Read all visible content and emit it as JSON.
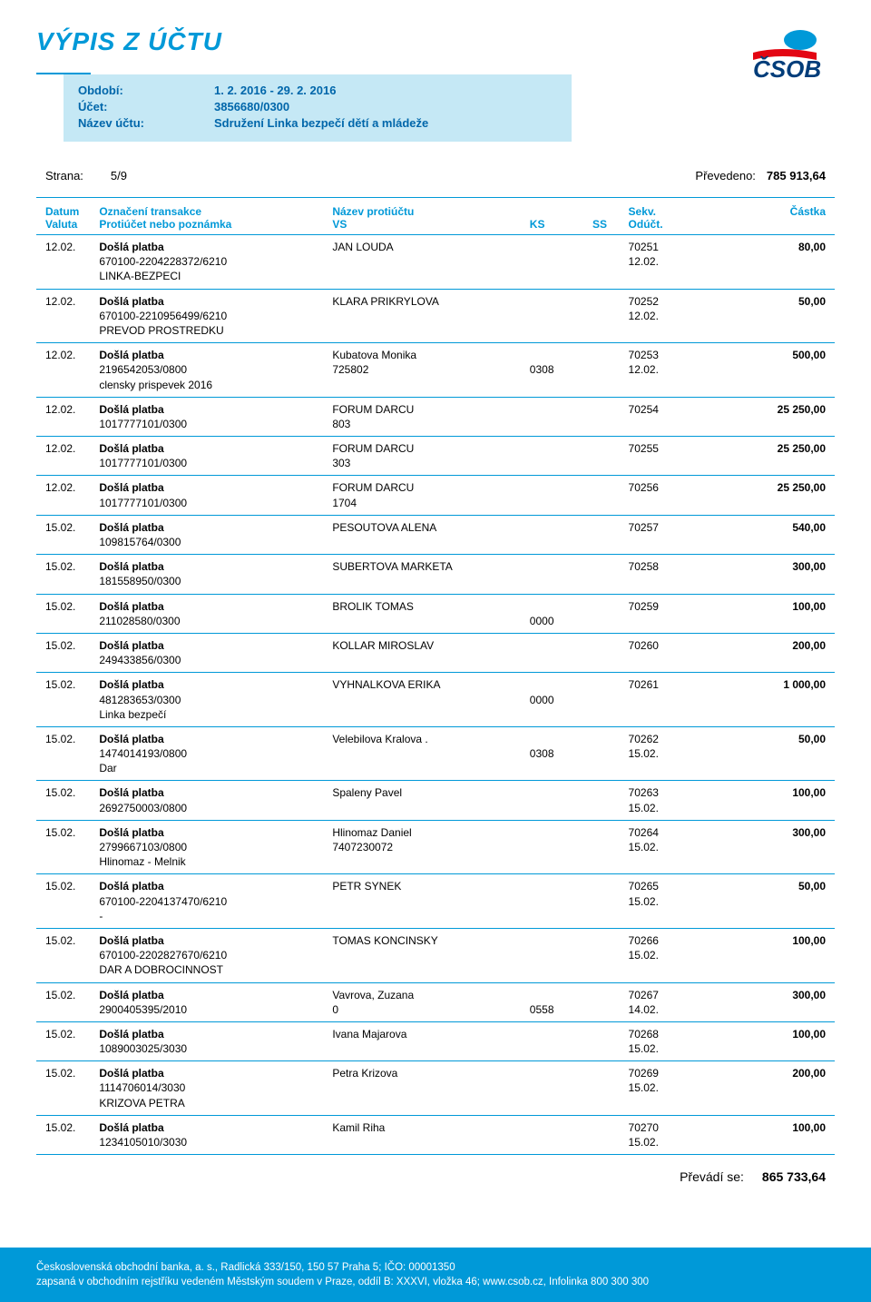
{
  "doc": {
    "title": "VÝPIS Z ÚČTU",
    "period_label": "Období:",
    "period_value": "1. 2. 2016 - 29. 2. 2016",
    "account_label": "Účet:",
    "account_value": "3856680/0300",
    "name_label": "Název účtu:",
    "name_value": "Sdružení Linka bezpečí dětí a mládeže",
    "page_label": "Strana:",
    "page_value": "5/9",
    "carried_label": "Převedeno:",
    "carried_value": "785 913,64",
    "summary_label": "Převádí se:",
    "summary_value": "865 733,64",
    "logo_text": "ČSOB",
    "footer_line1": "Československá obchodní banka, a. s., Radlická 333/150, 150 57 Praha 5; IČO: 00001350",
    "footer_line2": "zapsaná v obchodním rejstříku vedeném Městským soudem v Praze, oddíl B: XXXVI, vložka 46; www.csob.cz, Infolinka 800 300 300"
  },
  "colors": {
    "primary": "#0099d8",
    "info_bg": "#c5e8f5",
    "info_text": "#0066aa",
    "text": "#000000",
    "white": "#ffffff"
  },
  "headers": {
    "date": "Datum",
    "valuta": "Valuta",
    "label": "Označení transakce",
    "note": "Protiúčet nebo poznámka",
    "counter": "Název protiúčtu",
    "vs": "VS",
    "ks": "KS",
    "ss": "SS",
    "sekv": "Sekv.",
    "oduct": "Odúčt.",
    "amount": "Částka"
  },
  "transactions": [
    {
      "date": "12.02.",
      "type": "Došlá platba",
      "acct": "670100-2204228372/6210",
      "note": "LINKA-BEZPECI",
      "name": "JAN LOUDA",
      "vs": "",
      "ks": "",
      "sekv": "70251",
      "oduct": "12.02.",
      "amount": "80,00"
    },
    {
      "date": "12.02.",
      "type": "Došlá platba",
      "acct": "670100-2210956499/6210",
      "note": "PREVOD PROSTREDKU",
      "name": "KLARA PRIKRYLOVA",
      "vs": "",
      "ks": "",
      "sekv": "70252",
      "oduct": "12.02.",
      "amount": "50,00"
    },
    {
      "date": "12.02.",
      "type": "Došlá platba",
      "acct": "2196542053/0800",
      "note": "clensky prispevek 2016",
      "name": "Kubatova Monika",
      "vs": "725802",
      "ks": "0308",
      "sekv": "70253",
      "oduct": "12.02.",
      "amount": "500,00"
    },
    {
      "date": "12.02.",
      "type": "Došlá platba",
      "acct": "1017777101/0300",
      "note": "",
      "name": "FORUM DARCU",
      "vs": "803",
      "ks": "",
      "sekv": "70254",
      "oduct": "",
      "amount": "25 250,00"
    },
    {
      "date": "12.02.",
      "type": "Došlá platba",
      "acct": "1017777101/0300",
      "note": "",
      "name": "FORUM DARCU",
      "vs": "303",
      "ks": "",
      "sekv": "70255",
      "oduct": "",
      "amount": "25 250,00"
    },
    {
      "date": "12.02.",
      "type": "Došlá platba",
      "acct": "1017777101/0300",
      "note": "",
      "name": "FORUM DARCU",
      "vs": "1704",
      "ks": "",
      "sekv": "70256",
      "oduct": "",
      "amount": "25 250,00"
    },
    {
      "date": "15.02.",
      "type": "Došlá platba",
      "acct": "109815764/0300",
      "note": "",
      "name": "PESOUTOVA ALENA",
      "vs": "",
      "ks": "",
      "sekv": "70257",
      "oduct": "",
      "amount": "540,00"
    },
    {
      "date": "15.02.",
      "type": "Došlá platba",
      "acct": "181558950/0300",
      "note": "",
      "name": "SUBERTOVA MARKETA",
      "vs": "",
      "ks": "",
      "sekv": "70258",
      "oduct": "",
      "amount": "300,00"
    },
    {
      "date": "15.02.",
      "type": "Došlá platba",
      "acct": "211028580/0300",
      "note": "",
      "name": "BROLIK TOMAS",
      "vs": "",
      "ks": "0000",
      "sekv": "70259",
      "oduct": "",
      "amount": "100,00"
    },
    {
      "date": "15.02.",
      "type": "Došlá platba",
      "acct": "249433856/0300",
      "note": "",
      "name": "KOLLAR MIROSLAV",
      "vs": "",
      "ks": "",
      "sekv": "70260",
      "oduct": "",
      "amount": "200,00"
    },
    {
      "date": "15.02.",
      "type": "Došlá platba",
      "acct": "481283653/0300",
      "note": "Linka bezpečí",
      "name": "VYHNALKOVA ERIKA",
      "vs": "",
      "ks": "0000",
      "sekv": "70261",
      "oduct": "",
      "amount": "1 000,00"
    },
    {
      "date": "15.02.",
      "type": "Došlá platba",
      "acct": "1474014193/0800",
      "note": "Dar",
      "name": "Velebilova Kralova .",
      "vs": "",
      "ks": "0308",
      "sekv": "70262",
      "oduct": "15.02.",
      "amount": "50,00"
    },
    {
      "date": "15.02.",
      "type": "Došlá platba",
      "acct": "2692750003/0800",
      "note": "",
      "name": "Spaleny Pavel",
      "vs": "",
      "ks": "",
      "sekv": "70263",
      "oduct": "15.02.",
      "amount": "100,00"
    },
    {
      "date": "15.02.",
      "type": "Došlá platba",
      "acct": "2799667103/0800",
      "note": "Hlinomaz - Melnik",
      "name": "Hlinomaz Daniel",
      "vs": "7407230072",
      "ks": "",
      "sekv": "70264",
      "oduct": "15.02.",
      "amount": "300,00"
    },
    {
      "date": "15.02.",
      "type": "Došlá platba",
      "acct": "670100-2204137470/6210",
      "note": "-",
      "name": "PETR SYNEK",
      "vs": "",
      "ks": "",
      "sekv": "70265",
      "oduct": "15.02.",
      "amount": "50,00"
    },
    {
      "date": "15.02.",
      "type": "Došlá platba",
      "acct": "670100-2202827670/6210",
      "note": "DAR A DOBROCINNOST",
      "name": "TOMAS KONCINSKY",
      "vs": "",
      "ks": "",
      "sekv": "70266",
      "oduct": "15.02.",
      "amount": "100,00"
    },
    {
      "date": "15.02.",
      "type": "Došlá platba",
      "acct": "2900405395/2010",
      "note": "",
      "name": "Vavrova, Zuzana",
      "vs": "0",
      "ks": "0558",
      "sekv": "70267",
      "oduct": "14.02.",
      "amount": "300,00"
    },
    {
      "date": "15.02.",
      "type": "Došlá platba",
      "acct": "1089003025/3030",
      "note": "",
      "name": "Ivana Majarova",
      "vs": "",
      "ks": "",
      "sekv": "70268",
      "oduct": "15.02.",
      "amount": "100,00"
    },
    {
      "date": "15.02.",
      "type": "Došlá platba",
      "acct": "1114706014/3030",
      "note": "KRIZOVA PETRA",
      "name": "Petra Krizova",
      "vs": "",
      "ks": "",
      "sekv": "70269",
      "oduct": "15.02.",
      "amount": "200,00"
    },
    {
      "date": "15.02.",
      "type": "Došlá platba",
      "acct": "1234105010/3030",
      "note": "",
      "name": "Kamil Riha",
      "vs": "",
      "ks": "",
      "sekv": "70270",
      "oduct": "15.02.",
      "amount": "100,00"
    }
  ]
}
